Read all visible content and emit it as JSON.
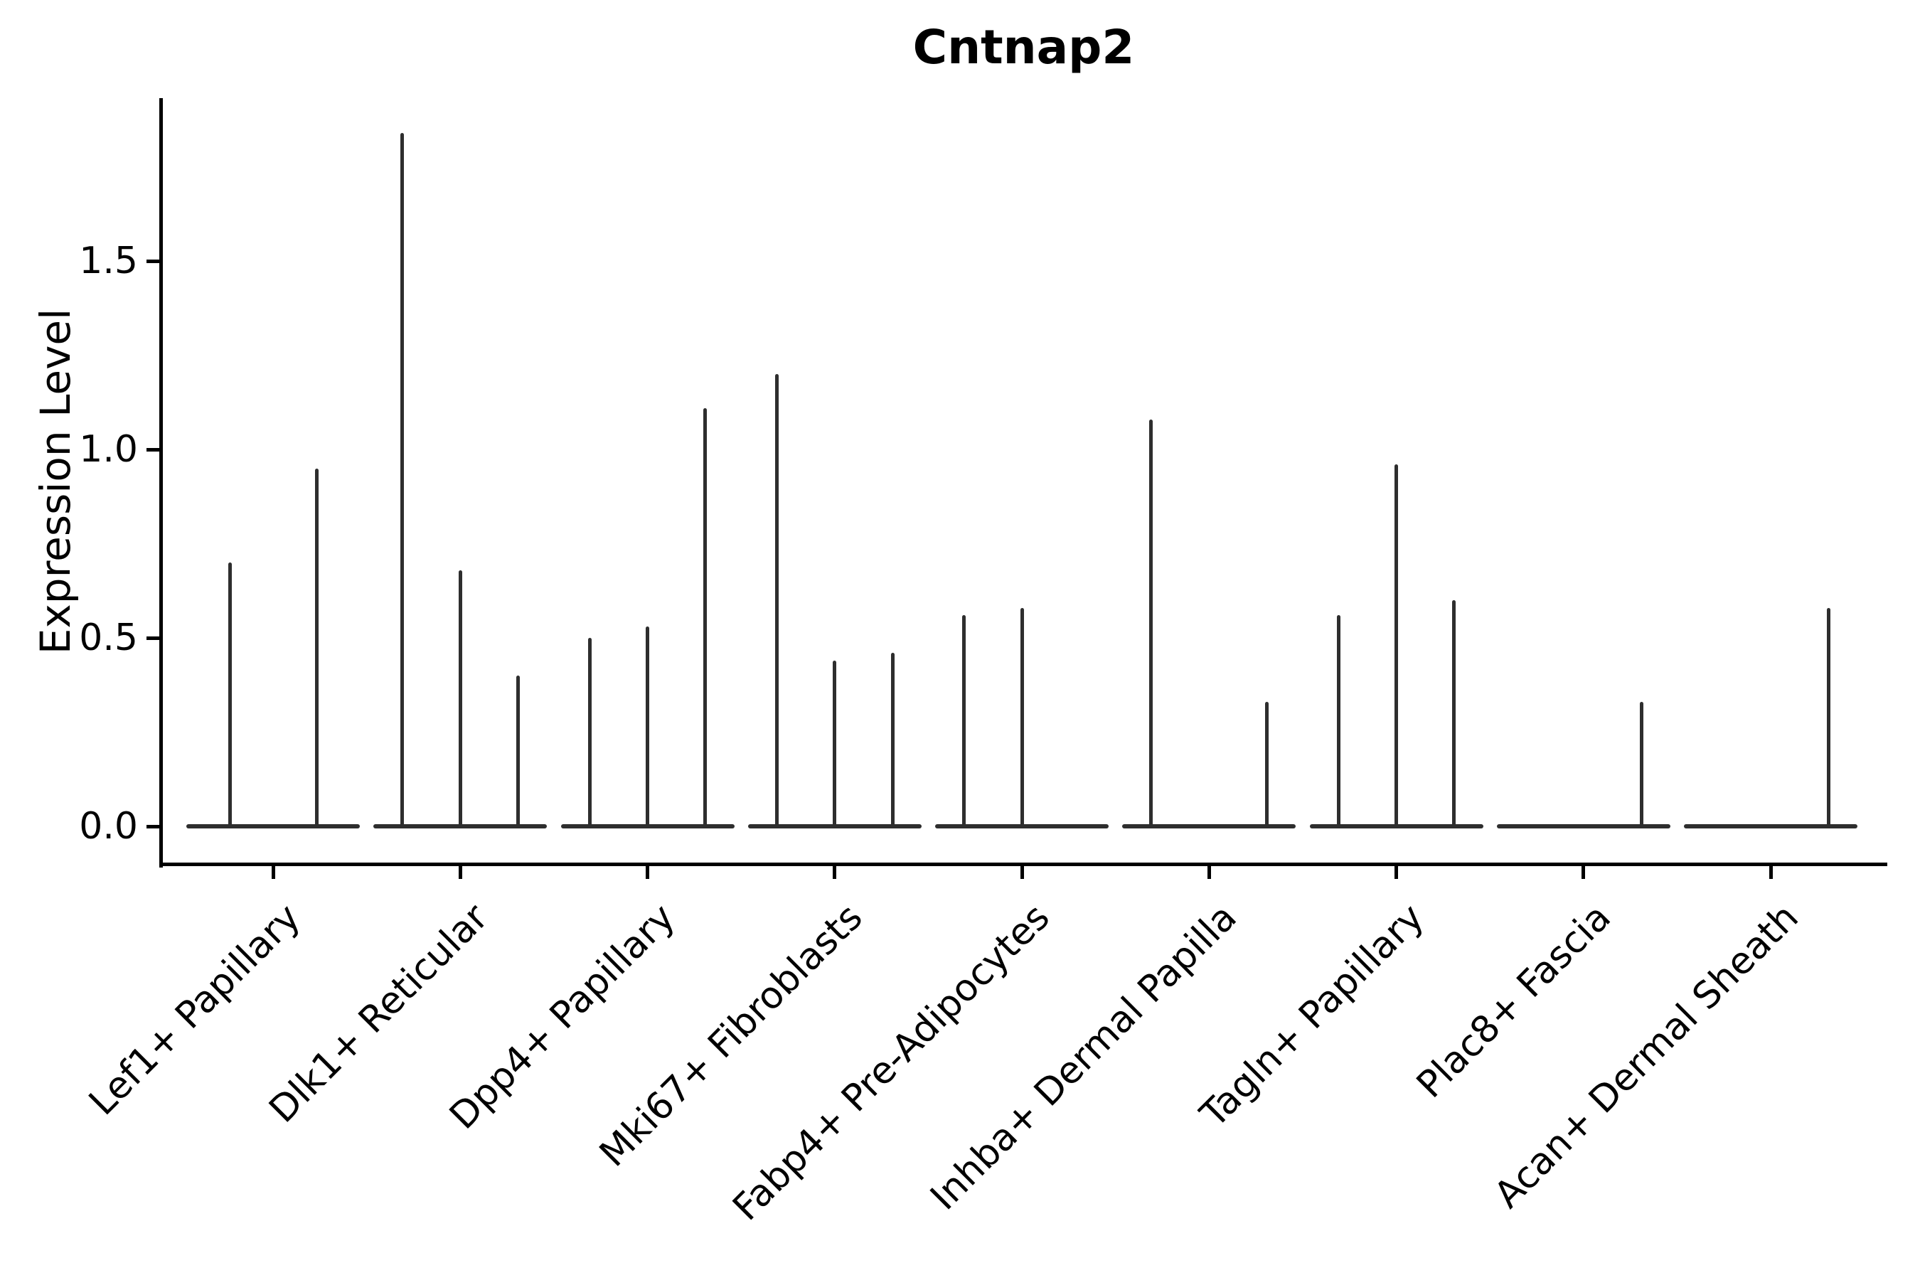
{
  "chart_data": {
    "type": "violin",
    "title": "Cntnap2",
    "xlabel": "",
    "ylabel": "Expression Level",
    "ylim": [
      -0.1,
      1.93
    ],
    "yticks": [
      "0.0",
      "0.5",
      "1.0",
      "1.5"
    ],
    "grid": false,
    "legend": null,
    "line_color": "#2e2e2e",
    "axis_color": "#000000",
    "background_color": "#ffffff",
    "categories": [
      "Lef1+ Papillary",
      "Dlk1+ Reticular",
      "Dpp4+ Papillary",
      "Mki67+ Fibroblasts",
      "Fabp4+ Pre-Adipocytes",
      "Inhba+ Dermal Papilla",
      "Tagln+ Papillary",
      "Plac8+ Fascia",
      "Acan+ Dermal Sheath"
    ],
    "series": [
      {
        "category": "Lef1+ Papillary",
        "violin_max_expression": [
          0.7,
          0.95
        ]
      },
      {
        "category": "Dlk1+ Reticular",
        "violin_max_expression": [
          1.84,
          0.68,
          0.4
        ]
      },
      {
        "category": "Dpp4+ Papillary",
        "violin_max_expression": [
          0.5,
          0.53,
          1.11
        ]
      },
      {
        "category": "Mki67+ Fibroblasts",
        "violin_max_expression": [
          1.2,
          0.44,
          0.46
        ]
      },
      {
        "category": "Fabp4+ Pre-Adipocytes",
        "violin_max_expression": [
          0.56,
          0.58,
          0
        ]
      },
      {
        "category": "Inhba+ Dermal Papilla",
        "violin_max_expression": [
          1.08,
          0,
          0.33
        ]
      },
      {
        "category": "Tagln+ Papillary",
        "violin_max_expression": [
          0.56,
          0.96,
          0.6
        ]
      },
      {
        "category": "Plac8+ Fascia",
        "violin_max_expression": [
          0,
          0,
          0.33
        ]
      },
      {
        "category": "Acan+ Dermal Sheath",
        "violin_max_expression": [
          0,
          0,
          0.58
        ]
      }
    ]
  }
}
